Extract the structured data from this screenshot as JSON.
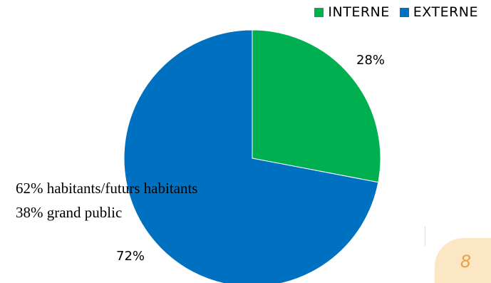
{
  "chart_data": {
    "type": "pie",
    "slices": [
      {
        "name": "INTERNE",
        "value": 28,
        "label": "28%",
        "color": "#00b050"
      },
      {
        "name": "EXTERNE",
        "value": 72,
        "label": "72%",
        "color": "#0070c0"
      }
    ],
    "legend": {
      "placement": "top-right",
      "items": [
        "INTERNE",
        "EXTERNE"
      ]
    },
    "annotation": [
      "62% habitants/futurs habitants",
      "38% grand public"
    ]
  },
  "page_number": "8"
}
